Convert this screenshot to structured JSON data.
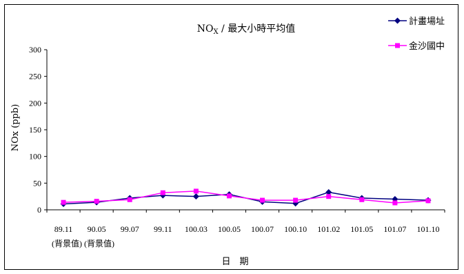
{
  "chart_data": {
    "type": "line",
    "title_main": "NO",
    "title_sub": "X",
    "title_rest": " / 最大小時平均值",
    "ylabel": "NOx (ppb)",
    "xlabel": "日　期",
    "categories": [
      "89.11",
      "90.05",
      "99.07",
      "99.11",
      "100.03",
      "100.05",
      "100.07",
      "100.10",
      "101.02",
      "101.05",
      "101.07",
      "101.10"
    ],
    "category_notes": [
      "(背景值)",
      "(背景值)"
    ],
    "ylim": [
      0,
      300
    ],
    "yticks": [
      0,
      50,
      100,
      150,
      200,
      250,
      300
    ],
    "grid": false,
    "legend_position": "top-right",
    "series": [
      {
        "name": "計畫場址",
        "color": "#000080",
        "marker": "diamond",
        "values": [
          11,
          14,
          22,
          27,
          25,
          29,
          15,
          12,
          33,
          22,
          20,
          18
        ]
      },
      {
        "name": "金沙國中",
        "color": "#ff00ff",
        "marker": "square",
        "values": [
          14,
          16,
          19,
          32,
          35,
          26,
          18,
          18,
          25,
          19,
          13,
          17
        ]
      }
    ]
  }
}
